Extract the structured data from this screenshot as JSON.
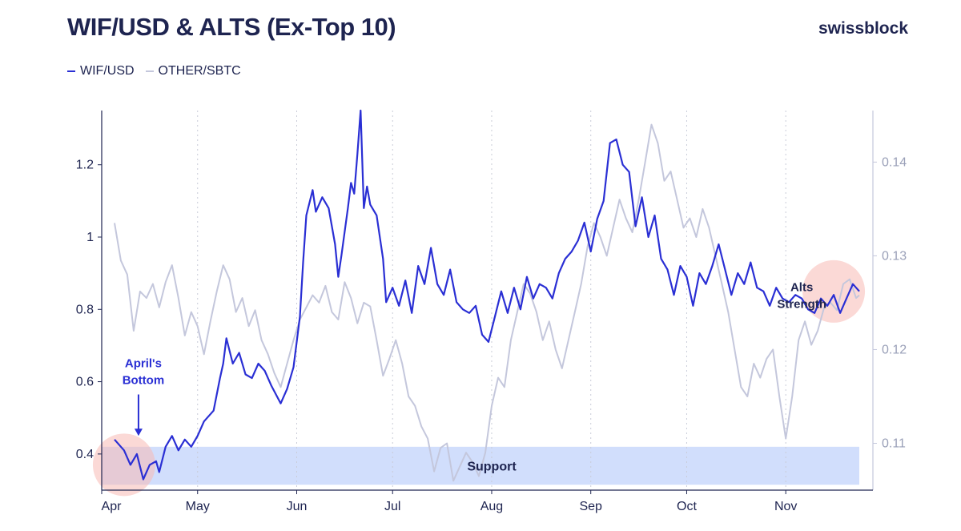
{
  "header": {
    "title": "WIF/USD & ALTS (Ex-Top 10)",
    "brand": "swissblock"
  },
  "colors": {
    "primary": "#2a2fd4",
    "secondary": "#c4c7dc",
    "support": "#c9d8fb",
    "highlight": "#f8b9b4",
    "text": "#1e2450",
    "axis_right": "#9aa0b8"
  },
  "chart_data": {
    "type": "line",
    "title": "WIF/USD & ALTS (Ex-Top 10)",
    "x_ticks": [
      "Apr",
      "May",
      "Jun",
      "Jul",
      "Aug",
      "Sep",
      "Oct",
      "Nov"
    ],
    "x_tick_days": [
      0,
      30,
      61,
      91,
      122,
      153,
      183,
      214
    ],
    "x_range_days": [
      0,
      237
    ],
    "y_left": {
      "ticks": [
        0.4,
        0.6,
        0.8,
        1,
        1.2
      ],
      "tick_labels": [
        "0.4",
        "0.6",
        "0.8",
        "1",
        "1.2"
      ],
      "range": [
        0.3,
        1.35
      ]
    },
    "y_right": {
      "ticks": [
        0.11,
        0.12,
        0.13,
        0.14
      ],
      "tick_labels": [
        "0.11",
        "0.12",
        "0.13",
        "0.14"
      ],
      "range": [
        0.105,
        0.1455
      ]
    },
    "series": [
      {
        "name": "WIF/USD",
        "axis": "left",
        "points": [
          [
            4,
            0.44
          ],
          [
            7,
            0.41
          ],
          [
            9,
            0.37
          ],
          [
            11,
            0.4
          ],
          [
            13,
            0.33
          ],
          [
            15,
            0.37
          ],
          [
            17,
            0.38
          ],
          [
            18,
            0.35
          ],
          [
            20,
            0.42
          ],
          [
            22,
            0.45
          ],
          [
            24,
            0.41
          ],
          [
            26,
            0.44
          ],
          [
            28,
            0.42
          ],
          [
            30,
            0.45
          ],
          [
            32,
            0.49
          ],
          [
            35,
            0.52
          ],
          [
            37,
            0.61
          ],
          [
            38,
            0.65
          ],
          [
            39,
            0.72
          ],
          [
            41,
            0.65
          ],
          [
            43,
            0.68
          ],
          [
            45,
            0.62
          ],
          [
            47,
            0.61
          ],
          [
            49,
            0.65
          ],
          [
            51,
            0.63
          ],
          [
            53,
            0.59
          ],
          [
            56,
            0.54
          ],
          [
            58,
            0.58
          ],
          [
            60,
            0.64
          ],
          [
            62,
            0.78
          ],
          [
            63,
            0.93
          ],
          [
            64,
            1.06
          ],
          [
            66,
            1.13
          ],
          [
            67,
            1.07
          ],
          [
            69,
            1.11
          ],
          [
            71,
            1.08
          ],
          [
            73,
            0.98
          ],
          [
            74,
            0.89
          ],
          [
            75,
            0.95
          ],
          [
            77,
            1.08
          ],
          [
            78,
            1.15
          ],
          [
            79,
            1.12
          ],
          [
            80,
            1.23
          ],
          [
            81,
            1.35
          ],
          [
            82,
            1.08
          ],
          [
            83,
            1.14
          ],
          [
            84,
            1.09
          ],
          [
            86,
            1.06
          ],
          [
            88,
            0.94
          ],
          [
            89,
            0.82
          ],
          [
            91,
            0.86
          ],
          [
            93,
            0.81
          ],
          [
            95,
            0.88
          ],
          [
            97,
            0.79
          ],
          [
            99,
            0.92
          ],
          [
            101,
            0.87
          ],
          [
            103,
            0.97
          ],
          [
            105,
            0.87
          ],
          [
            107,
            0.84
          ],
          [
            109,
            0.91
          ],
          [
            111,
            0.82
          ],
          [
            113,
            0.8
          ],
          [
            115,
            0.79
          ],
          [
            117,
            0.81
          ],
          [
            119,
            0.73
          ],
          [
            121,
            0.71
          ],
          [
            123,
            0.78
          ],
          [
            125,
            0.85
          ],
          [
            127,
            0.79
          ],
          [
            129,
            0.86
          ],
          [
            131,
            0.8
          ],
          [
            133,
            0.89
          ],
          [
            135,
            0.83
          ],
          [
            137,
            0.87
          ],
          [
            139,
            0.86
          ],
          [
            141,
            0.83
          ],
          [
            143,
            0.9
          ],
          [
            145,
            0.94
          ],
          [
            147,
            0.96
          ],
          [
            149,
            0.99
          ],
          [
            151,
            1.04
          ],
          [
            153,
            0.96
          ],
          [
            155,
            1.05
          ],
          [
            157,
            1.1
          ],
          [
            159,
            1.26
          ],
          [
            161,
            1.27
          ],
          [
            163,
            1.2
          ],
          [
            165,
            1.18
          ],
          [
            167,
            1.03
          ],
          [
            169,
            1.11
          ],
          [
            171,
            1.0
          ],
          [
            173,
            1.06
          ],
          [
            175,
            0.94
          ],
          [
            177,
            0.91
          ],
          [
            179,
            0.84
          ],
          [
            181,
            0.92
          ],
          [
            183,
            0.89
          ],
          [
            185,
            0.81
          ],
          [
            187,
            0.9
          ],
          [
            189,
            0.87
          ],
          [
            191,
            0.92
          ],
          [
            193,
            0.98
          ],
          [
            195,
            0.91
          ],
          [
            197,
            0.84
          ],
          [
            199,
            0.9
          ],
          [
            201,
            0.87
          ],
          [
            203,
            0.93
          ],
          [
            205,
            0.86
          ],
          [
            207,
            0.85
          ],
          [
            209,
            0.81
          ],
          [
            211,
            0.86
          ],
          [
            213,
            0.83
          ],
          [
            215,
            0.82
          ],
          [
            217,
            0.84
          ],
          [
            219,
            0.83
          ],
          [
            221,
            0.8
          ],
          [
            223,
            0.79
          ],
          [
            225,
            0.83
          ],
          [
            227,
            0.81
          ],
          [
            229,
            0.84
          ],
          [
            231,
            0.79
          ],
          [
            233,
            0.83
          ],
          [
            235,
            0.87
          ],
          [
            237,
            0.85
          ]
        ],
        "range_override_days": [
          4,
          237
        ]
      },
      {
        "name": "OTHER/SBTC",
        "axis": "right",
        "points": [
          [
            4,
            0.1335
          ],
          [
            6,
            0.1295
          ],
          [
            8,
            0.128
          ],
          [
            10,
            0.122
          ],
          [
            12,
            0.1262
          ],
          [
            14,
            0.1255
          ],
          [
            16,
            0.127
          ],
          [
            18,
            0.1245
          ],
          [
            20,
            0.1272
          ],
          [
            22,
            0.129
          ],
          [
            24,
            0.1255
          ],
          [
            26,
            0.1215
          ],
          [
            28,
            0.124
          ],
          [
            30,
            0.1225
          ],
          [
            32,
            0.1195
          ],
          [
            34,
            0.123
          ],
          [
            36,
            0.1262
          ],
          [
            38,
            0.129
          ],
          [
            40,
            0.1275
          ],
          [
            42,
            0.124
          ],
          [
            44,
            0.1255
          ],
          [
            46,
            0.1225
          ],
          [
            48,
            0.1242
          ],
          [
            50,
            0.121
          ],
          [
            52,
            0.1195
          ],
          [
            54,
            0.1175
          ],
          [
            56,
            0.116
          ],
          [
            58,
            0.1185
          ],
          [
            60,
            0.121
          ],
          [
            62,
            0.1232
          ],
          [
            64,
            0.1245
          ],
          [
            66,
            0.1258
          ],
          [
            68,
            0.125
          ],
          [
            70,
            0.1268
          ],
          [
            72,
            0.124
          ],
          [
            74,
            0.1232
          ],
          [
            76,
            0.1272
          ],
          [
            78,
            0.1255
          ],
          [
            80,
            0.1228
          ],
          [
            82,
            0.125
          ],
          [
            84,
            0.1246
          ],
          [
            86,
            0.121
          ],
          [
            88,
            0.1172
          ],
          [
            90,
            0.119
          ],
          [
            92,
            0.121
          ],
          [
            94,
            0.1185
          ],
          [
            96,
            0.115
          ],
          [
            98,
            0.114
          ],
          [
            100,
            0.1118
          ],
          [
            102,
            0.1105
          ],
          [
            104,
            0.107
          ],
          [
            106,
            0.1095
          ],
          [
            108,
            0.11
          ],
          [
            110,
            0.106
          ],
          [
            112,
            0.1075
          ],
          [
            114,
            0.109
          ],
          [
            116,
            0.108
          ],
          [
            118,
            0.1065
          ],
          [
            120,
            0.109
          ],
          [
            122,
            0.114
          ],
          [
            124,
            0.117
          ],
          [
            126,
            0.116
          ],
          [
            128,
            0.121
          ],
          [
            130,
            0.124
          ],
          [
            132,
            0.127
          ],
          [
            134,
            0.126
          ],
          [
            136,
            0.124
          ],
          [
            138,
            0.121
          ],
          [
            140,
            0.123
          ],
          [
            142,
            0.12
          ],
          [
            144,
            0.118
          ],
          [
            146,
            0.121
          ],
          [
            148,
            0.124
          ],
          [
            150,
            0.127
          ],
          [
            152,
            0.131
          ],
          [
            154,
            0.1335
          ],
          [
            156,
            0.132
          ],
          [
            158,
            0.13
          ],
          [
            160,
            0.133
          ],
          [
            162,
            0.136
          ],
          [
            164,
            0.134
          ],
          [
            166,
            0.1325
          ],
          [
            168,
            0.136
          ],
          [
            170,
            0.14
          ],
          [
            172,
            0.144
          ],
          [
            174,
            0.142
          ],
          [
            176,
            0.138
          ],
          [
            178,
            0.139
          ],
          [
            180,
            0.136
          ],
          [
            182,
            0.133
          ],
          [
            184,
            0.134
          ],
          [
            186,
            0.132
          ],
          [
            188,
            0.135
          ],
          [
            190,
            0.133
          ],
          [
            192,
            0.13
          ],
          [
            194,
            0.127
          ],
          [
            196,
            0.124
          ],
          [
            198,
            0.12
          ],
          [
            200,
            0.116
          ],
          [
            202,
            0.115
          ],
          [
            204,
            0.1185
          ],
          [
            206,
            0.117
          ],
          [
            208,
            0.119
          ],
          [
            210,
            0.12
          ],
          [
            212,
            0.115
          ],
          [
            214,
            0.1105
          ],
          [
            216,
            0.115
          ],
          [
            218,
            0.121
          ],
          [
            220,
            0.123
          ],
          [
            222,
            0.1205
          ],
          [
            224,
            0.122
          ],
          [
            226,
            0.1245
          ],
          [
            228,
            0.125
          ],
          [
            230,
            0.1242
          ],
          [
            232,
            0.127
          ],
          [
            234,
            0.1275
          ],
          [
            236,
            0.1255
          ],
          [
            237,
            0.1258
          ]
        ]
      }
    ],
    "legend": [
      "WIF/USD",
      "OTHER/SBTC"
    ],
    "support_band": {
      "label": "Support",
      "y_range": [
        0.315,
        0.42
      ]
    },
    "annotations": [
      {
        "text_lines": [
          "April's",
          "Bottom"
        ],
        "x_day": 7,
        "y_value": 0.64,
        "color": "#2a2fd4",
        "arrow_to": [
          7,
          0.45
        ]
      },
      {
        "text_lines": [
          "Alts",
          "Strength"
        ],
        "x_day": 219,
        "y_value": 0.85,
        "color": "#1e2450"
      }
    ],
    "highlights": [
      {
        "x_day": 7,
        "y_value": 0.37,
        "axis": "left"
      },
      {
        "x_day": 229,
        "y_value": 0.1262,
        "axis": "right"
      }
    ]
  }
}
